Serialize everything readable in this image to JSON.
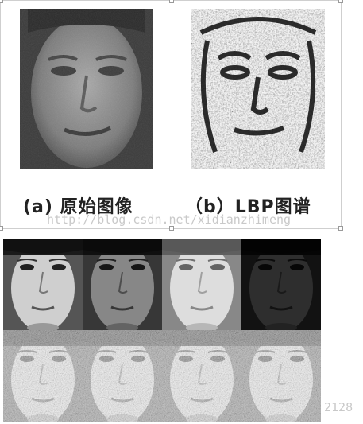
{
  "figure_top": {
    "caption_a": "(a) 原始图像",
    "caption_b": "（b）LBP图谱",
    "watermark": "http://blog.csdn.net/xidianzhimeng"
  },
  "figure_bottom": {
    "watermark": "2128"
  },
  "colors": {
    "panel_border": "#cfcfcf",
    "caption": "#222222",
    "watermark": "#c9c9c9"
  }
}
